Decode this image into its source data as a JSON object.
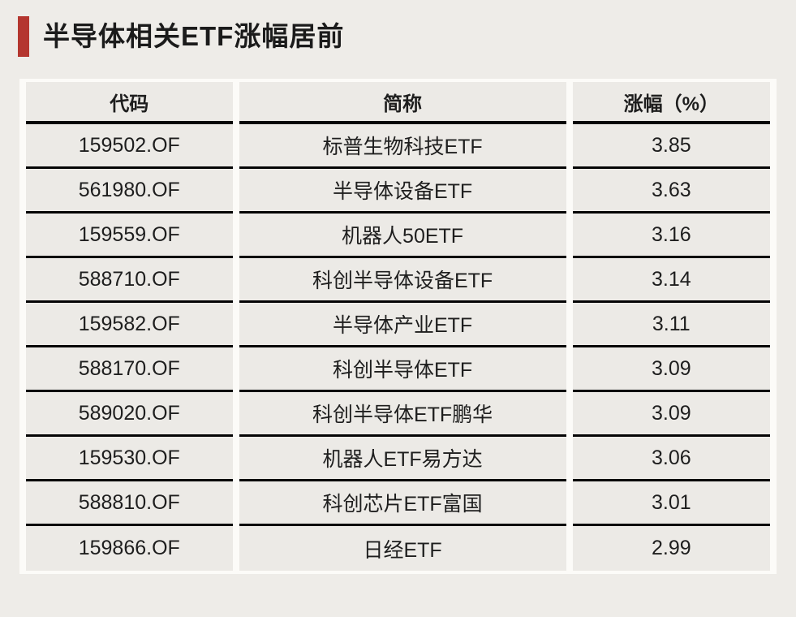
{
  "page": {
    "background_color": "#eeece8",
    "cell_color": "#eceae6",
    "separator_color": "#fcfbf8",
    "line_color": "#050505"
  },
  "title": {
    "text": "半导体相关ETF涨幅居前",
    "accent_color": "#b4362f"
  },
  "chart_data": {
    "type": "table",
    "title": "半导体相关ETF涨幅居前",
    "columns": [
      "代码",
      "简称",
      "涨幅（%）"
    ],
    "rows": [
      [
        "159502.OF",
        "标普生物科技ETF",
        3.85
      ],
      [
        "561980.OF",
        "半导体设备ETF",
        3.63
      ],
      [
        "159559.OF",
        "机器人50ETF",
        3.16
      ],
      [
        "588710.OF",
        "科创半导体设备ETF",
        3.14
      ],
      [
        "159582.OF",
        "半导体产业ETF",
        3.11
      ],
      [
        "588170.OF",
        "科创半导体ETF",
        3.09
      ],
      [
        "589020.OF",
        "科创半导体ETF鹏华",
        3.09
      ],
      [
        "159530.OF",
        "机器人ETF易方达",
        3.06
      ],
      [
        "588810.OF",
        "科创芯片ETF富国",
        3.01
      ],
      [
        "159866.OF",
        "日经ETF",
        2.99
      ]
    ]
  }
}
